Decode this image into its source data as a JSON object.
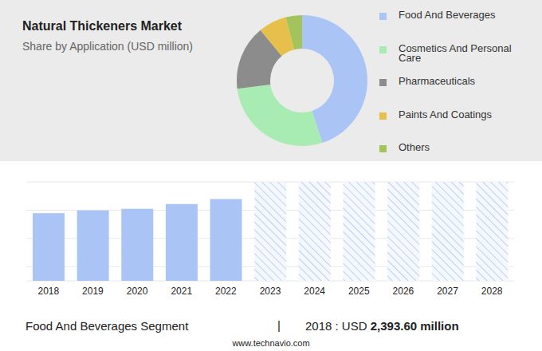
{
  "chart_data": [
    {
      "type": "pie",
      "title": "Natural Thickeners Market",
      "subtitle": "Share by Application (USD million)",
      "categories": [
        "Food And Beverages",
        "Cosmetics And Personal Care",
        "Pharmaceuticals",
        "Paints And Coatings",
        "Others"
      ],
      "values": [
        45,
        28,
        16,
        7,
        4
      ],
      "colors": [
        "#a9c4f5",
        "#a8ecb4",
        "#8c8c8c",
        "#e6c04a",
        "#a3c45c"
      ],
      "legend": "right"
    },
    {
      "type": "bar",
      "categories": [
        "2018",
        "2019",
        "2020",
        "2021",
        "2022",
        "2023",
        "2024",
        "2025",
        "2026",
        "2027",
        "2028"
      ],
      "values": [
        2393.6,
        2490,
        2545,
        2720,
        2890,
        null,
        null,
        null,
        null,
        null,
        null
      ],
      "color": "#a9c4f5",
      "ylim": [
        0,
        3500
      ],
      "yticks": [
        0,
        500,
        1000,
        1500,
        2000,
        2500,
        3000,
        3500
      ],
      "grid": true,
      "tick_labels": "x"
    }
  ],
  "footer": {
    "segment": "Food And Beverages Segment",
    "separator": "|",
    "category_label": "2018 : USD",
    "value_label": "2,393.60 million"
  },
  "source": "www.technavio.com"
}
